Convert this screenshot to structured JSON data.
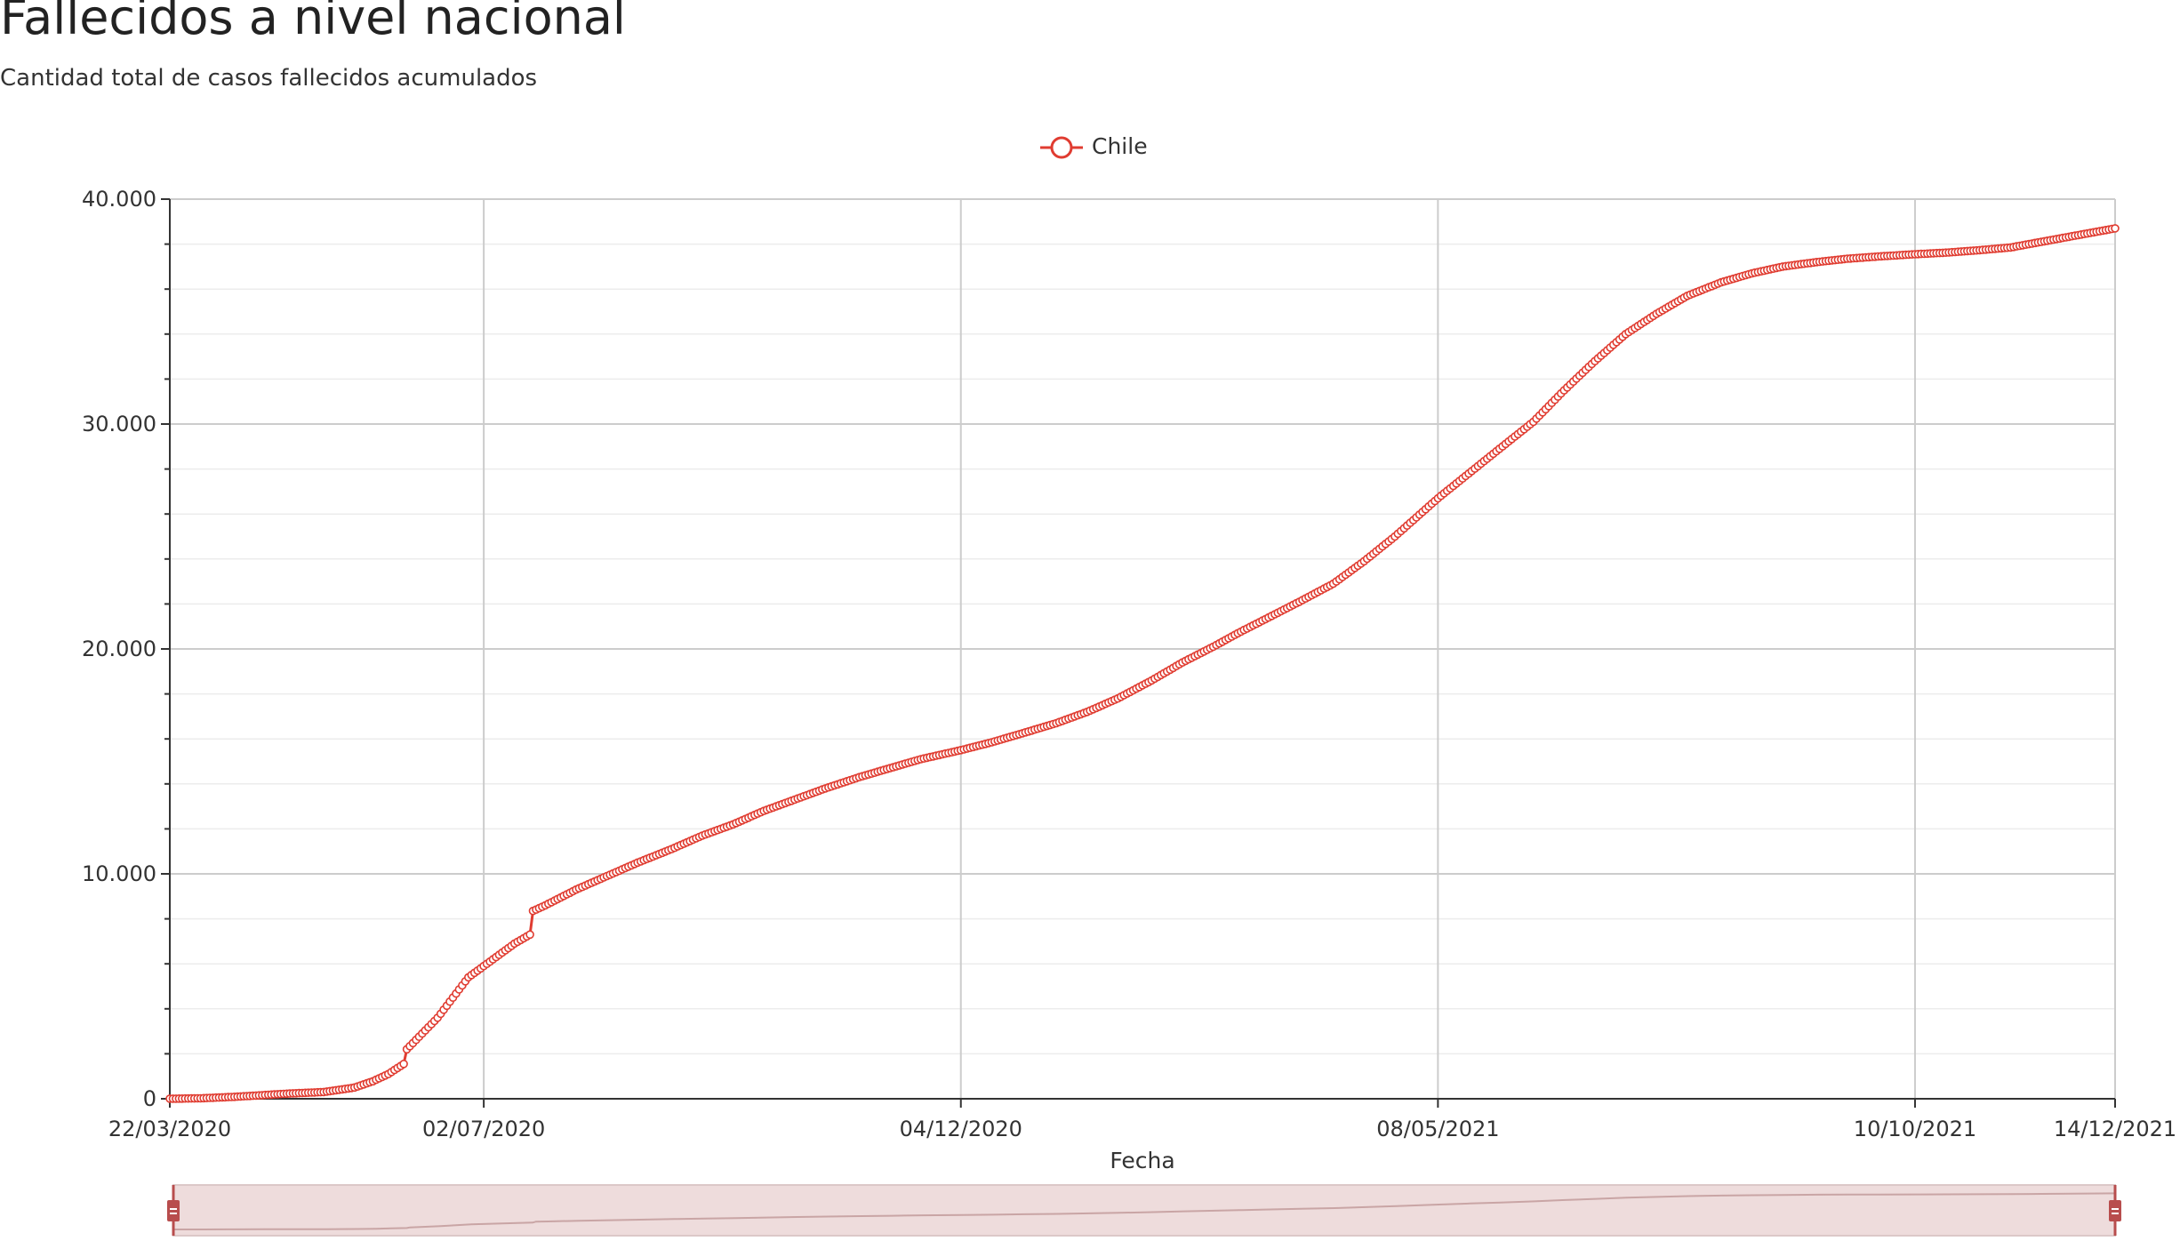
{
  "chart_data": {
    "type": "line",
    "title": "Fallecidos a nivel nacional",
    "subtitle": "Cantidad total de casos fallecidos acumulados",
    "xlabel": "Fecha",
    "ylabel": "",
    "ylim": [
      0,
      40000
    ],
    "y_ticks": [
      0,
      10000,
      20000,
      30000,
      40000
    ],
    "y_tick_labels": [
      "0",
      "10.000",
      "20.000",
      "30.000",
      "40.000"
    ],
    "x_range": [
      "2020-03-22",
      "2021-12-14"
    ],
    "x_ticks": [
      "2020-03-22",
      "2020-07-02",
      "2020-12-04",
      "2021-05-08",
      "2021-10-10",
      "2021-12-14"
    ],
    "x_tick_labels": [
      "22/03/2020",
      "02/07/2020",
      "04/12/2020",
      "08/05/2021",
      "10/10/2021",
      "14/12/2021"
    ],
    "grid": true,
    "legend_position": "top-center",
    "series": [
      {
        "name": "Chile",
        "color": "#e03c31",
        "x": [
          "2020-03-22",
          "2020-04-01",
          "2020-04-11",
          "2020-04-21",
          "2020-05-01",
          "2020-05-11",
          "2020-05-21",
          "2020-05-27",
          "2020-06-01",
          "2020-06-06",
          "2020-06-07",
          "2020-06-12",
          "2020-06-17",
          "2020-06-22",
          "2020-06-27",
          "2020-07-02",
          "2020-07-07",
          "2020-07-12",
          "2020-07-17",
          "2020-07-18",
          "2020-07-22",
          "2020-08-01",
          "2020-08-11",
          "2020-08-21",
          "2020-09-01",
          "2020-09-11",
          "2020-09-21",
          "2020-10-01",
          "2020-10-11",
          "2020-10-21",
          "2020-11-01",
          "2020-11-11",
          "2020-11-21",
          "2020-12-04",
          "2020-12-14",
          "2020-12-24",
          "2021-01-04",
          "2021-01-14",
          "2021-01-24",
          "2021-02-04",
          "2021-02-14",
          "2021-02-24",
          "2021-03-04",
          "2021-03-14",
          "2021-03-24",
          "2021-04-04",
          "2021-04-14",
          "2021-04-24",
          "2021-05-08",
          "2021-05-18",
          "2021-05-28",
          "2021-06-08",
          "2021-06-18",
          "2021-06-28",
          "2021-07-08",
          "2021-07-18",
          "2021-07-28",
          "2021-08-08",
          "2021-08-18",
          "2021-08-28",
          "2021-09-08",
          "2021-09-18",
          "2021-09-28",
          "2021-10-10",
          "2021-10-20",
          "2021-10-30",
          "2021-11-10",
          "2021-11-20",
          "2021-11-30",
          "2021-12-14"
        ],
        "y": [
          2,
          20,
          80,
          160,
          240,
          300,
          500,
          780,
          1100,
          1550,
          2200,
          2900,
          3600,
          4500,
          5400,
          5900,
          6400,
          6900,
          7300,
          8350,
          8600,
          9300,
          9900,
          10500,
          11100,
          11700,
          12200,
          12800,
          13300,
          13800,
          14300,
          14700,
          15100,
          15500,
          15850,
          16250,
          16700,
          17200,
          17800,
          18600,
          19400,
          20100,
          20700,
          21400,
          22100,
          22900,
          23900,
          25000,
          26700,
          27800,
          28900,
          30100,
          31500,
          32800,
          34000,
          34900,
          35700,
          36300,
          36700,
          37000,
          37200,
          37350,
          37450,
          37550,
          37620,
          37720,
          37850,
          38100,
          38350,
          38700
        ]
      }
    ]
  }
}
